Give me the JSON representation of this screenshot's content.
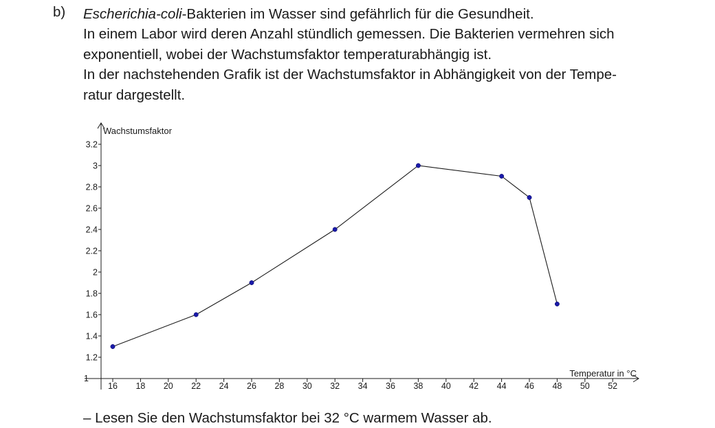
{
  "task": {
    "label": "b)",
    "species": "Escherichia-coli",
    "line1_rest": "-Bakterien im Wasser sind gefährlich für die Gesundheit.",
    "line2": "In einem Labor wird deren Anzahl stündlich gemessen. Die Bakterien vermehren sich",
    "line3": "exponentiell, wobei der Wachstumsfaktor temperaturabhängig ist.",
    "line4": "In der nachstehenden Grafik ist der Wachstumsfaktor in Abhängigkeit von der Tempe-",
    "line5": "ratur dargestellt."
  },
  "chart_data": {
    "type": "line",
    "xlabel": "Temperatur in °C",
    "ylabel": "Wachstumsfaktor",
    "x_ticks": [
      16,
      18,
      20,
      22,
      24,
      26,
      28,
      30,
      32,
      34,
      36,
      38,
      40,
      42,
      44,
      46,
      48,
      50,
      52
    ],
    "y_ticks": [
      1.2,
      1.4,
      1.6,
      1.8,
      2,
      2.2,
      2.4,
      2.6,
      2.8,
      3,
      3.2
    ],
    "axis_origin_y_label": "1",
    "xlim": [
      15,
      54
    ],
    "ylim": [
      1,
      3.35
    ],
    "grid": false,
    "points": [
      {
        "x": 16,
        "y": 1.3
      },
      {
        "x": 22,
        "y": 1.6
      },
      {
        "x": 26,
        "y": 1.9
      },
      {
        "x": 32,
        "y": 2.4
      },
      {
        "x": 38,
        "y": 3.0
      },
      {
        "x": 44,
        "y": 2.9
      },
      {
        "x": 46,
        "y": 2.7
      },
      {
        "x": 48,
        "y": 1.7
      }
    ],
    "line_color": "#1a1a1a",
    "point_color": "#1a1aa8"
  },
  "question": "– Lesen Sie den Wachstumsfaktor bei 32 °C warmem Wasser ab."
}
